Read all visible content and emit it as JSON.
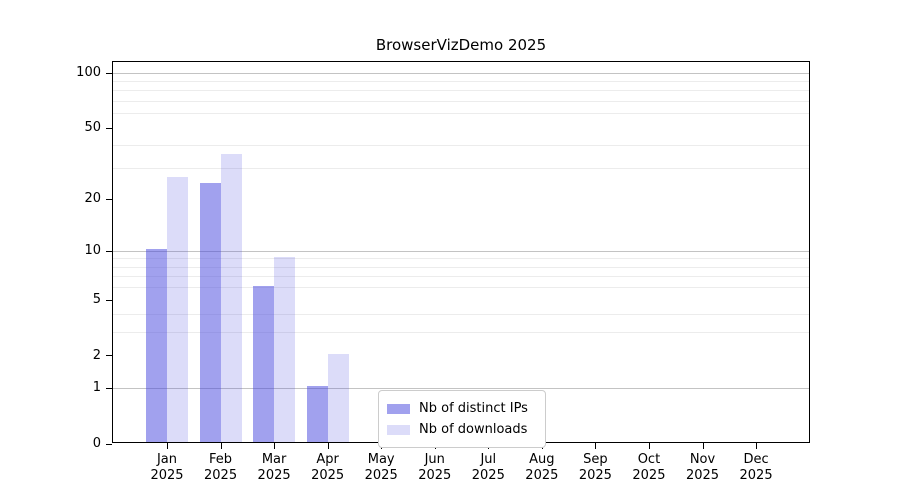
{
  "title": "BrowserVizDemo 2025",
  "legend": {
    "items": [
      {
        "label": "Nb of distinct IPs",
        "color": "rgba(68,68,221,0.50)"
      },
      {
        "label": "Nb of downloads",
        "color": "rgba(68,68,221,0.19)"
      }
    ]
  },
  "colors": {
    "series_ips": "rgba(68,68,221,0.50)",
    "series_downloads": "rgba(68,68,221,0.19)",
    "major_gridline": "#c3c3c3",
    "minor_gridline": "#ececec",
    "axis": "#000000",
    "legend_border": "#cccccc"
  },
  "chart_data": {
    "type": "bar",
    "title": "BrowserVizDemo 2025",
    "categories": [
      "Jan 2025",
      "Feb 2025",
      "Mar 2025",
      "Apr 2025",
      "May 2025",
      "Jun 2025",
      "Jul 2025",
      "Aug 2025",
      "Sep 2025",
      "Oct 2025",
      "Nov 2025",
      "Dec 2025"
    ],
    "x_tick_line1": [
      "Jan",
      "Feb",
      "Mar",
      "Apr",
      "May",
      "Jun",
      "Jul",
      "Aug",
      "Sep",
      "Oct",
      "Nov",
      "Dec"
    ],
    "x_tick_line2": [
      "2025",
      "2025",
      "2025",
      "2025",
      "2025",
      "2025",
      "2025",
      "2025",
      "2025",
      "2025",
      "2025",
      "2025"
    ],
    "series": [
      {
        "name": "Nb of distinct IPs",
        "values": [
          10,
          24,
          6,
          1,
          0,
          0,
          0,
          0,
          0,
          0,
          0,
          0
        ],
        "color": "rgba(68,68,221,0.50)"
      },
      {
        "name": "Nb of downloads",
        "values": [
          26,
          35,
          9,
          2,
          0,
          0,
          0,
          0,
          0,
          0,
          0,
          0
        ],
        "color": "rgba(68,68,221,0.19)"
      }
    ],
    "xlabel": "",
    "ylabel": "",
    "y_scale": "log1p",
    "y_ticks": [
      0,
      1,
      2,
      5,
      10,
      20,
      50,
      100
    ],
    "y_major_gridlines": [
      1,
      10,
      100
    ],
    "y_minor_gridlines": [
      3,
      4,
      6,
      7,
      8,
      9,
      30,
      40,
      60,
      70,
      80,
      90
    ],
    "ylim": [
      0,
      115
    ],
    "grid": true,
    "legend_position": "lower center"
  }
}
